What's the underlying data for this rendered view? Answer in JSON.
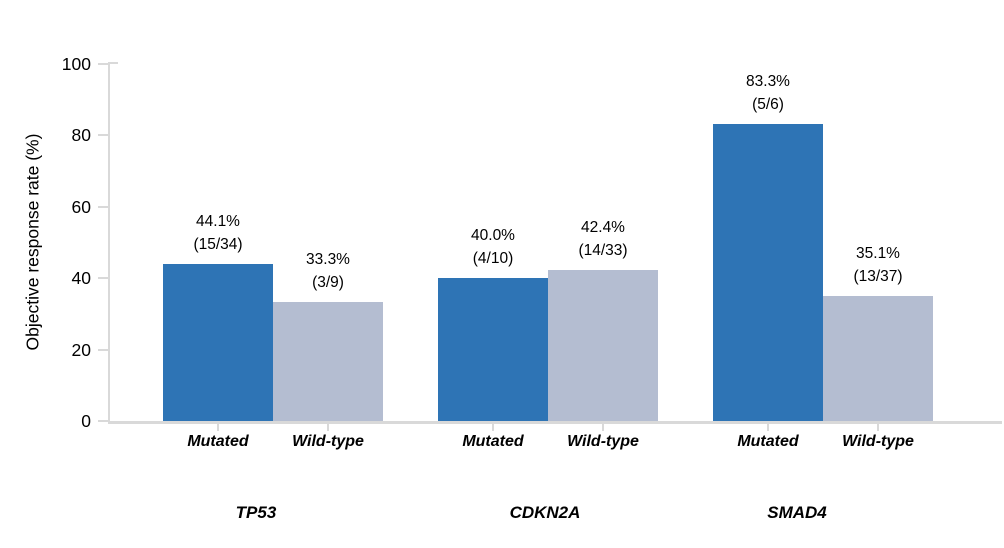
{
  "chart_data": {
    "type": "bar",
    "title": "",
    "xlabel": "",
    "ylabel": "Objective response rate (%)",
    "ylim": [
      0,
      100
    ],
    "yticks": [
      0,
      20,
      40,
      60,
      80,
      100
    ],
    "grid": false,
    "legend_position": "none",
    "series_names": [
      "Mutated",
      "Wild-type"
    ],
    "groups": [
      {
        "gene": "TP53",
        "bars": [
          {
            "category": "Mutated",
            "series": "Mutated",
            "value": 44.1,
            "label_pct": "44.1%",
            "label_frac": "(15/34)"
          },
          {
            "category": "Wild-type",
            "series": "Wild-type",
            "value": 33.3,
            "label_pct": "33.3%",
            "label_frac": "(3/9)"
          }
        ]
      },
      {
        "gene": "CDKN2A",
        "bars": [
          {
            "category": "Mutated",
            "series": "Mutated",
            "value": 40.0,
            "label_pct": "40.0%",
            "label_frac": "(4/10)"
          },
          {
            "category": "Wild-type",
            "series": "Wild-type",
            "value": 42.4,
            "label_pct": "42.4%",
            "label_frac": "(14/33)"
          }
        ]
      },
      {
        "gene": "SMAD4",
        "bars": [
          {
            "category": "Mutated",
            "series": "Mutated",
            "value": 83.3,
            "label_pct": "83.3%",
            "label_frac": "(5/6)"
          },
          {
            "category": "Wild-type",
            "series": "Wild-type",
            "value": 35.1,
            "label_pct": "35.1%",
            "label_frac": "(13/37)"
          }
        ]
      }
    ],
    "colors": {
      "mutated": "#2e74b5",
      "wild_type": "#b4bdd1",
      "axis": "#d9d9d9",
      "text": "#000000",
      "background": "#ffffff"
    }
  }
}
